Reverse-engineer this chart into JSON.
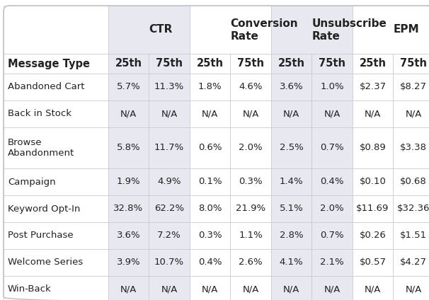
{
  "col_headers_top": [
    "CTR",
    "Conversion\nRate",
    "Unsubscribe\nRate",
    "EPM"
  ],
  "col_headers_sub": [
    "25th",
    "75th",
    "25th",
    "75th",
    "25th",
    "75th",
    "25th",
    "75th"
  ],
  "row_label_header": "Message Type",
  "rows": [
    [
      "Abandoned Cart",
      "5.7%",
      "11.3%",
      "1.8%",
      "4.6%",
      "3.6%",
      "1.0%",
      "$2.37",
      "$8.27"
    ],
    [
      "Back in Stock",
      "N/A",
      "N/A",
      "N/A",
      "N/A",
      "N/A",
      "N/A",
      "N/A",
      "N/A"
    ],
    [
      "Browse\nAbandonment",
      "5.8%",
      "11.7%",
      "0.6%",
      "2.0%",
      "2.5%",
      "0.7%",
      "$0.89",
      "$3.38"
    ],
    [
      "Campaign",
      "1.9%",
      "4.9%",
      "0.1%",
      "0.3%",
      "1.4%",
      "0.4%",
      "$0.10",
      "$0.68"
    ],
    [
      "Keyword Opt-In",
      "32.8%",
      "62.2%",
      "8.0%",
      "21.9%",
      "5.1%",
      "2.0%",
      "$11.69",
      "$32.36"
    ],
    [
      "Post Purchase",
      "3.6%",
      "7.2%",
      "0.3%",
      "1.1%",
      "2.8%",
      "0.7%",
      "$0.26",
      "$1.51"
    ],
    [
      "Welcome Series",
      "3.9%",
      "10.7%",
      "0.4%",
      "2.6%",
      "4.1%",
      "2.1%",
      "$0.57",
      "$4.27"
    ],
    [
      "Win-Back",
      "N/A",
      "N/A",
      "N/A",
      "N/A",
      "N/A",
      "N/A",
      "N/A",
      "N/A"
    ]
  ],
  "header_bg": "#e8e8f0",
  "white_bg": "#ffffff",
  "text_color": "#222222",
  "border_color": "#c8c8c8",
  "fig_width": 6.06,
  "fig_height": 4.24,
  "dpi": 100
}
